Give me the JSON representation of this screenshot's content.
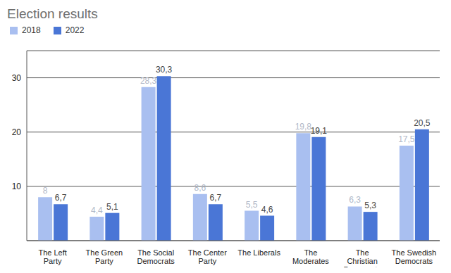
{
  "chart_data": {
    "type": "bar",
    "title": "Election results",
    "categories": [
      "The Left Party",
      "The Green Party",
      "The Social Democrats",
      "The Center Party",
      "The Liberals",
      "The Moderates",
      "The Christian Democrats",
      "The Swedish Democrats"
    ],
    "series": [
      {
        "name": "2018",
        "color": "#a9bff0",
        "values": [
          8,
          4.4,
          28.3,
          8.6,
          5.5,
          19.8,
          6.3,
          17.5
        ],
        "value_labels": [
          "8",
          "4,4",
          "28,3",
          "8,6",
          "5,5",
          "19,8",
          "6,3",
          "17,5"
        ]
      },
      {
        "name": "2022",
        "color": "#4a76d6",
        "values": [
          6.7,
          5.1,
          30.3,
          6.7,
          4.6,
          19.1,
          5.3,
          20.5
        ],
        "value_labels": [
          "6,7",
          "5,1",
          "30,3",
          "6,7",
          "4,6",
          "19,1",
          "5,3",
          "20,5"
        ]
      }
    ],
    "ylim": [
      0,
      35
    ],
    "yticks": [
      10,
      20,
      30
    ],
    "grid": true,
    "legend": "top-left",
    "data_labels": true
  }
}
